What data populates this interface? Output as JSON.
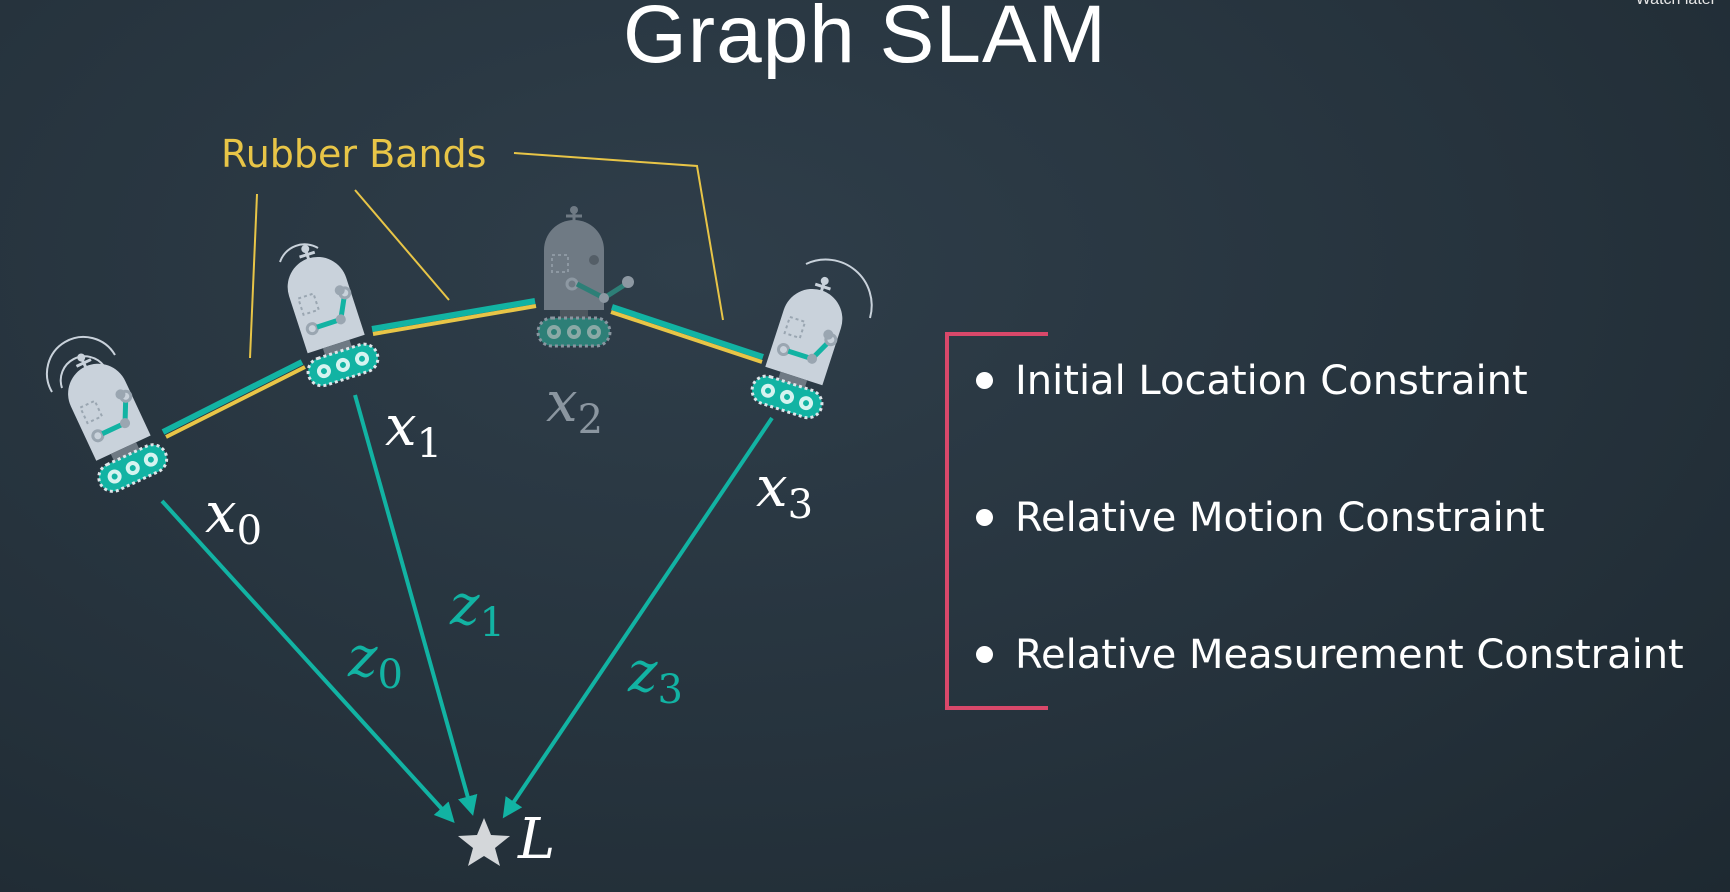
{
  "title": "Graph SLAM",
  "overlay": {
    "watch_later": "Watch later"
  },
  "rubber_bands_label": "Rubber Bands",
  "poses": [
    {
      "var": "x",
      "sub": "0"
    },
    {
      "var": "x",
      "sub": "1"
    },
    {
      "var": "x",
      "sub": "2"
    },
    {
      "var": "x",
      "sub": "3"
    }
  ],
  "measurements": [
    {
      "var": "z",
      "sub": "0"
    },
    {
      "var": "z",
      "sub": "1"
    },
    {
      "var": "z",
      "sub": "3"
    }
  ],
  "landmark": "L",
  "constraints": [
    "Initial Location Constraint",
    "Relative Motion Constraint",
    "Relative Measurement Constraint"
  ],
  "colors": {
    "teal": "#12b3a3",
    "yellow": "#e8c547",
    "bracket": "#d9486a",
    "robot_light": "#c9d2db",
    "robot_dark": "#6f7a84"
  },
  "icons": {
    "robot": "robot-icon",
    "landmark": "star-icon"
  }
}
